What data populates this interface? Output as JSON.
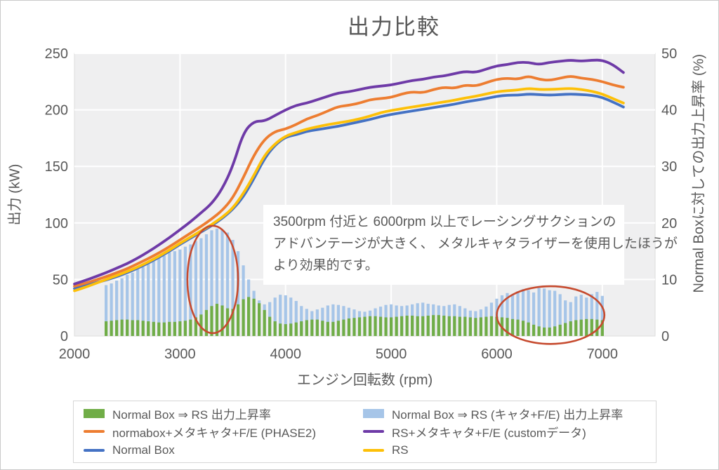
{
  "title": "出力比較",
  "colors": {
    "purple": "#6e3aa7",
    "orange": "#ed7d31",
    "blue": "#4472c4",
    "yellow": "#fdc008",
    "green": "#70ad47",
    "light_blue": "#a6c5e8",
    "ellipse": "#c64a2e",
    "text": "#595959",
    "plot_bg": "#efeff0",
    "plot_border": "#dcdcdc",
    "grid": "#ffffff"
  },
  "axes": {
    "x": {
      "label": "エンジン回転数 (rpm)"
    },
    "y_left": {
      "label": "出力 (kW)"
    },
    "y_right": {
      "label": "Normal Boxに対しての出力上昇率 (%)"
    }
  },
  "annotation": {
    "lines": [
      "3500rpm 付近と 6000rpm 以上でレーシングサクションの",
      "アドバンテージが大きく、 メタルキャタライザーを使用したほうが",
      "より効果的です。"
    ]
  },
  "legend": {
    "items": [
      {
        "swatch": "bar",
        "color": "#70ad47",
        "label": "Normal Box ⇒ RS 出力上昇率"
      },
      {
        "swatch": "bar",
        "color": "#a6c5e8",
        "label": "Normal Box ⇒ RS (キャタ+F/E) 出力上昇率"
      },
      {
        "swatch": "line",
        "color": "#ed7d31",
        "label": "normabox+メタキャタ+F/E (PHASE2)"
      },
      {
        "swatch": "line",
        "color": "#6e3aa7",
        "label": "RS+メタキャタ+F/E (customデータ)"
      },
      {
        "swatch": "line",
        "color": "#4472c4",
        "label": "Normal Box"
      },
      {
        "swatch": "line",
        "color": "#fdc008",
        "label": "RS"
      }
    ]
  },
  "chart_data": {
    "type": "combo-bar-line",
    "title": "出力比較",
    "x_axis": {
      "label": "エンジン回転数 (rpm)",
      "range": [
        2000,
        7500
      ],
      "ticks": [
        2000,
        3000,
        4000,
        5000,
        6000,
        7000
      ]
    },
    "y_left": {
      "label": "出力 (kW)",
      "range": [
        0,
        250
      ],
      "ticks": [
        0,
        50,
        100,
        150,
        200,
        250
      ]
    },
    "y_right": {
      "label": "Normal Boxに対しての出力上昇率 (%)",
      "range": [
        0,
        50
      ],
      "ticks": [
        0,
        10,
        20,
        30,
        40,
        50
      ]
    },
    "grid": true,
    "legend_position": "bottom",
    "line_x": [
      2000,
      2100,
      2200,
      2300,
      2400,
      2500,
      2600,
      2700,
      2800,
      2900,
      3000,
      3100,
      3200,
      3300,
      3400,
      3500,
      3600,
      3700,
      3800,
      3900,
      4000,
      4100,
      4200,
      4300,
      4400,
      4500,
      4600,
      4700,
      4800,
      4900,
      5000,
      5100,
      5200,
      5300,
      5400,
      5500,
      5600,
      5700,
      5800,
      5900,
      6000,
      6100,
      6200,
      6300,
      6400,
      6500,
      6600,
      6700,
      6800,
      6900,
      7000,
      7100,
      7200
    ],
    "line_series": [
      {
        "name": "Normal Box",
        "color": "#4472c4",
        "axis": "left",
        "values": [
          42,
          44.5,
          47,
          49.5,
          52.5,
          56,
          60,
          64.5,
          69.5,
          75,
          81,
          86.5,
          92,
          97.5,
          104,
          112,
          123,
          139,
          157,
          169,
          176,
          178,
          181,
          182.5,
          184,
          185.5,
          187.5,
          189.5,
          191.5,
          194,
          196,
          197.5,
          199,
          200.5,
          202,
          203.5,
          205,
          207,
          208.5,
          210,
          212,
          213,
          213,
          214,
          213.5,
          213,
          213.5,
          214,
          213.5,
          213,
          211,
          207,
          202.5
        ]
      },
      {
        "name": "RS",
        "color": "#fdc008",
        "axis": "left",
        "values": [
          40,
          43,
          46.5,
          50,
          53.5,
          57,
          61,
          65.5,
          70.5,
          76,
          82,
          87.5,
          93,
          98.5,
          105,
          113,
          126,
          142,
          160,
          170,
          177,
          180,
          183,
          185,
          187,
          188.5,
          190,
          192,
          194.5,
          197.5,
          199.5,
          201,
          202.5,
          204,
          205.5,
          207,
          208.5,
          210.5,
          212,
          214,
          216,
          217,
          217.5,
          219,
          218,
          218,
          218.5,
          219,
          218,
          216.5,
          214,
          210,
          206
        ]
      },
      {
        "name": "normabox+メタキャタ+F/E (PHASE2)",
        "color": "#ed7d31",
        "axis": "left",
        "values": [
          44,
          46.5,
          49.5,
          52.5,
          56,
          59.5,
          64,
          68.5,
          73.5,
          79,
          85,
          91,
          97,
          103.5,
          111,
          122,
          140,
          160,
          174,
          181,
          183,
          187,
          192,
          195,
          199,
          203,
          204,
          206,
          209,
          210,
          211,
          214,
          216,
          215,
          218,
          220,
          219,
          222,
          221,
          224,
          227,
          228,
          227,
          230,
          227,
          226,
          228,
          230,
          228,
          227,
          225,
          222,
          220
        ]
      },
      {
        "name": "RS+メタキャタ+F/E (customデータ)",
        "color": "#6e3aa7",
        "axis": "left",
        "values": [
          46,
          49,
          52.5,
          56,
          60,
          64,
          69,
          74.5,
          80.5,
          87,
          94,
          101,
          109,
          117,
          130,
          150,
          180,
          190,
          190,
          195,
          200,
          204,
          206,
          209,
          212,
          215,
          216,
          218,
          220,
          221,
          222,
          224,
          226,
          227,
          229,
          230,
          232,
          234,
          233,
          236,
          239,
          240,
          242,
          242,
          240,
          242,
          243,
          244,
          243,
          244,
          244,
          240,
          233
        ]
      }
    ],
    "bar_x": [
      2300,
      2350,
      2400,
      2450,
      2500,
      2550,
      2600,
      2650,
      2700,
      2750,
      2800,
      2850,
      2900,
      2950,
      3000,
      3050,
      3100,
      3150,
      3200,
      3250,
      3300,
      3350,
      3400,
      3450,
      3500,
      3550,
      3600,
      3650,
      3700,
      3750,
      3800,
      3850,
      3900,
      3950,
      4000,
      4050,
      4100,
      4150,
      4200,
      4250,
      4300,
      4350,
      4400,
      4450,
      4500,
      4550,
      4600,
      4650,
      4700,
      4750,
      4800,
      4850,
      4900,
      4950,
      5000,
      5050,
      5100,
      5150,
      5200,
      5250,
      5300,
      5350,
      5400,
      5450,
      5500,
      5550,
      5600,
      5650,
      5700,
      5750,
      5800,
      5850,
      5900,
      5950,
      6000,
      6050,
      6100,
      6150,
      6200,
      6250,
      6300,
      6350,
      6400,
      6450,
      6500,
      6550,
      6600,
      6650,
      6700,
      6750,
      6800,
      6850,
      6900,
      6950,
      7000
    ],
    "bar_series": [
      {
        "name": "Normal Box ⇒ RS (キャタ+F/E) 出力上昇率",
        "color": "#a6c5e8",
        "axis": "right",
        "values": [
          9.0,
          9.3,
          9.8,
          10.2,
          10.8,
          11.2,
          11.8,
          12.2,
          12.8,
          13.2,
          13.8,
          14.2,
          14.8,
          15.0,
          15.3,
          15.8,
          16.2,
          16.8,
          17.3,
          18.0,
          18.7,
          19.0,
          18.8,
          18.3,
          17.0,
          15.0,
          12.5,
          10.0,
          8.0,
          6.3,
          5.6,
          6.0,
          6.8,
          7.3,
          7.2,
          6.8,
          6.2,
          5.3,
          4.8,
          4.4,
          4.7,
          5.0,
          5.4,
          5.6,
          5.5,
          5.3,
          5.0,
          4.7,
          4.4,
          4.3,
          4.5,
          4.9,
          5.2,
          5.5,
          5.6,
          5.4,
          5.3,
          5.4,
          5.6,
          5.8,
          5.9,
          5.7,
          5.6,
          5.4,
          5.3,
          5.5,
          5.6,
          5.3,
          4.9,
          4.5,
          4.4,
          4.7,
          5.2,
          5.9,
          6.6,
          7.2,
          7.6,
          7.3,
          7.9,
          8.3,
          8.1,
          7.7,
          8.5,
          8.4,
          8.1,
          8.0,
          7.4,
          6.3,
          6.0,
          7.0,
          7.3,
          6.8,
          7.4,
          7.8,
          7.1
        ]
      },
      {
        "name": "Normal Box ⇒ RS 出力上昇率",
        "color": "#70ad47",
        "axis": "right",
        "values": [
          2.6,
          2.7,
          2.8,
          2.9,
          2.9,
          2.8,
          2.8,
          2.7,
          2.6,
          2.5,
          2.4,
          2.4,
          2.5,
          2.5,
          2.6,
          2.7,
          2.9,
          3.3,
          3.8,
          4.6,
          5.3,
          5.7,
          5.4,
          4.9,
          4.8,
          5.6,
          6.5,
          6.9,
          6.6,
          5.8,
          4.6,
          3.4,
          2.6,
          2.2,
          2.1,
          2.2,
          2.4,
          2.6,
          2.8,
          2.9,
          2.9,
          2.7,
          2.5,
          2.5,
          2.7,
          2.9,
          3.1,
          3.2,
          3.3,
          3.4,
          3.5,
          3.5,
          3.4,
          3.3,
          3.3,
          3.4,
          3.5,
          3.6,
          3.6,
          3.5,
          3.5,
          3.6,
          3.7,
          3.7,
          3.6,
          3.5,
          3.5,
          3.4,
          3.4,
          3.3,
          3.2,
          3.3,
          3.4,
          3.5,
          3.4,
          3.3,
          3.2,
          3.0,
          2.9,
          2.7,
          2.4,
          2.0,
          1.7,
          1.5,
          1.5,
          1.7,
          2.0,
          2.3,
          2.6,
          2.8,
          2.9,
          3.0,
          3.0,
          2.9,
          2.8
        ]
      }
    ],
    "highlight_ellipses": [
      {
        "cx_rpm": 3310,
        "cy_pct": 10.0,
        "rx_rpm": 240,
        "ry_pct": 9.5
      },
      {
        "cx_rpm": 6510,
        "cy_pct": 3.7,
        "rx_rpm": 510,
        "ry_pct": 5.1
      }
    ]
  }
}
